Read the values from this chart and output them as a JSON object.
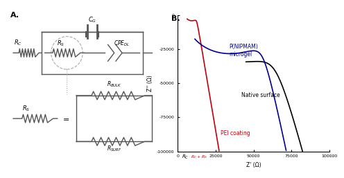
{
  "panel_A_label": "A.",
  "panel_B_label": "B.",
  "plot_xlim": [
    0,
    100000
  ],
  "plot_ylim": [
    -100000,
    0
  ],
  "yticks": [
    -100000,
    -75000,
    -50000,
    -25000,
    0
  ],
  "ytick_labels": [
    "-100000",
    "-75000",
    "-50000",
    "-25000",
    "0"
  ],
  "xticks": [
    0,
    25000,
    50000,
    75000,
    100000
  ],
  "xtick_labels": [
    "0",
    "25000",
    "50000",
    "75000",
    "100000"
  ],
  "xlabel": "Z' (Ω)",
  "ylabel": "Z'' (Ω)",
  "rc_label": "R_C",
  "rc_rs_label": "R_C+R_S",
  "pei_color": "#c0000a",
  "native_color": "#000000",
  "microgel_color": "#00008B",
  "pei_label": "PEI coating",
  "native_label": "Native surface",
  "microgel_label": "P(NIPMAM)\nmicrogel",
  "bg_color": "#ffffff",
  "circuit_color": "#555555"
}
